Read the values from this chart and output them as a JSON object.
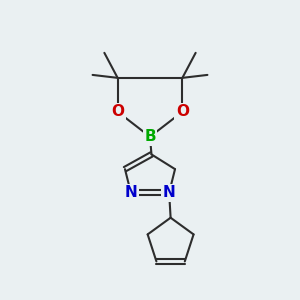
{
  "background_color": "#eaf0f2",
  "bond_color": "#2d2d2d",
  "bond_width": 1.5,
  "atom_B": {
    "color": "#00aa00",
    "fontsize": 11
  },
  "atom_N": {
    "color": "#0000cc",
    "fontsize": 11
  },
  "atom_O": {
    "color": "#cc0000",
    "fontsize": 11
  },
  "figsize": [
    3.0,
    3.0
  ],
  "dpi": 100,
  "xlim": [
    0,
    10
  ],
  "ylim": [
    0,
    10
  ]
}
